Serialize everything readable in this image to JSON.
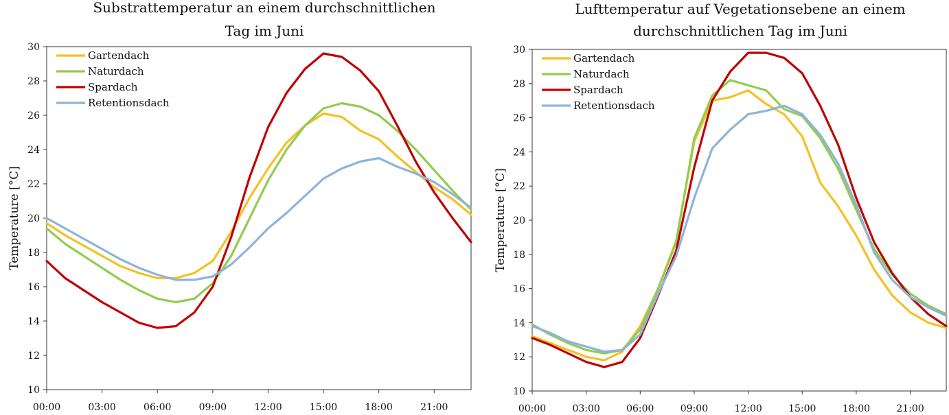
{
  "chart_data": [
    {
      "type": "line",
      "title_lines": [
        "Substrattemperatur an einem durchschnittlichen",
        "Tag im Juni"
      ],
      "xlabel": "",
      "ylabel": "Temperature [°C]",
      "xlim": [
        0,
        23
      ],
      "ylim": [
        10,
        30
      ],
      "yticks": [
        10,
        12,
        14,
        16,
        18,
        20,
        22,
        24,
        26,
        28,
        30
      ],
      "xtick_hours": [
        0,
        3,
        6,
        9,
        12,
        15,
        18,
        21
      ],
      "xtick_labels": [
        "00:00",
        "03:00",
        "06:00",
        "09:00",
        "12:00",
        "15:00",
        "18:00",
        "21:00"
      ],
      "grid": false,
      "legend_position": "top-left",
      "x": [
        0,
        1,
        2,
        3,
        4,
        5,
        6,
        7,
        8,
        9,
        10,
        11,
        12,
        13,
        14,
        15,
        16,
        17,
        18,
        19,
        20,
        21,
        22,
        23
      ],
      "series": [
        {
          "name": "Gartendach",
          "color": "#f5c022",
          "values": [
            19.7,
            19.0,
            18.4,
            17.8,
            17.2,
            16.8,
            16.5,
            16.5,
            16.8,
            17.5,
            19.2,
            21.2,
            22.9,
            24.4,
            25.4,
            26.1,
            25.9,
            25.1,
            24.6,
            23.6,
            22.7,
            21.8,
            21.1,
            20.2
          ]
        },
        {
          "name": "Naturdach",
          "color": "#92cc4f",
          "values": [
            19.4,
            18.5,
            17.8,
            17.1,
            16.4,
            15.8,
            15.3,
            15.1,
            15.3,
            16.2,
            17.8,
            20.0,
            22.2,
            24.0,
            25.4,
            26.4,
            26.7,
            26.5,
            26.0,
            25.1,
            24.0,
            22.8,
            21.6,
            20.5
          ]
        },
        {
          "name": "Spardach",
          "color": "#c00000",
          "values": [
            17.5,
            16.5,
            15.8,
            15.1,
            14.5,
            13.9,
            13.6,
            13.7,
            14.5,
            16.0,
            18.9,
            22.4,
            25.3,
            27.3,
            28.7,
            29.6,
            29.4,
            28.6,
            27.4,
            25.4,
            23.3,
            21.5,
            20.0,
            18.6
          ]
        },
        {
          "name": "Retentionsdach",
          "color": "#8db4d8",
          "values": [
            20.0,
            19.4,
            18.8,
            18.2,
            17.6,
            17.1,
            16.7,
            16.4,
            16.4,
            16.6,
            17.3,
            18.3,
            19.4,
            20.3,
            21.3,
            22.3,
            22.9,
            23.3,
            23.5,
            23.0,
            22.6,
            22.1,
            21.4,
            20.6
          ]
        }
      ]
    },
    {
      "type": "line",
      "title_lines": [
        "Lufttemperatur auf Vegetationsebene an einem",
        "durchschnittlichen Tag im Juni"
      ],
      "xlabel": "",
      "ylabel": "Temperature [°C]",
      "xlim": [
        0,
        23
      ],
      "ylim": [
        10,
        30
      ],
      "yticks": [
        10,
        12,
        14,
        16,
        18,
        20,
        22,
        24,
        26,
        28,
        30
      ],
      "xtick_hours": [
        0,
        3,
        6,
        9,
        12,
        15,
        18,
        21
      ],
      "xtick_labels": [
        "00:00",
        "03:00",
        "06:00",
        "09:00",
        "12:00",
        "15:00",
        "18:00",
        "21:00"
      ],
      "grid": false,
      "legend_position": "top-left",
      "x": [
        0,
        1,
        2,
        3,
        4,
        5,
        6,
        7,
        8,
        9,
        10,
        11,
        12,
        13,
        14,
        15,
        16,
        17,
        18,
        19,
        20,
        21,
        22,
        23
      ],
      "series": [
        {
          "name": "Gartendach",
          "color": "#f5c022",
          "values": [
            13.2,
            12.8,
            12.4,
            12.0,
            11.8,
            12.3,
            13.8,
            16.0,
            18.8,
            24.6,
            27.0,
            27.2,
            27.6,
            26.8,
            26.2,
            24.9,
            22.2,
            20.8,
            19.1,
            17.1,
            15.6,
            14.6,
            14.0,
            13.7
          ]
        },
        {
          "name": "Naturdach",
          "color": "#92cc4f",
          "values": [
            13.9,
            13.3,
            12.8,
            12.4,
            12.2,
            12.4,
            13.6,
            16.0,
            18.7,
            24.8,
            27.3,
            28.2,
            27.9,
            27.6,
            26.5,
            26.1,
            24.8,
            23.0,
            20.6,
            18.3,
            16.8,
            15.7,
            15.0,
            14.5
          ]
        },
        {
          "name": "Spardach",
          "color": "#c00000",
          "values": [
            13.1,
            12.7,
            12.2,
            11.7,
            11.4,
            11.7,
            13.1,
            15.6,
            18.2,
            23.1,
            27.0,
            28.7,
            29.8,
            29.8,
            29.5,
            28.6,
            26.7,
            24.4,
            21.3,
            18.7,
            16.9,
            15.5,
            14.5,
            13.8
          ]
        },
        {
          "name": "Retentionsdach",
          "color": "#8db4d8",
          "values": [
            13.8,
            13.4,
            12.9,
            12.6,
            12.3,
            12.4,
            13.3,
            15.7,
            17.9,
            21.3,
            24.2,
            25.3,
            26.2,
            26.4,
            26.7,
            26.2,
            25.0,
            23.3,
            20.9,
            18.1,
            16.5,
            15.5,
            14.9,
            14.4
          ]
        }
      ]
    }
  ]
}
